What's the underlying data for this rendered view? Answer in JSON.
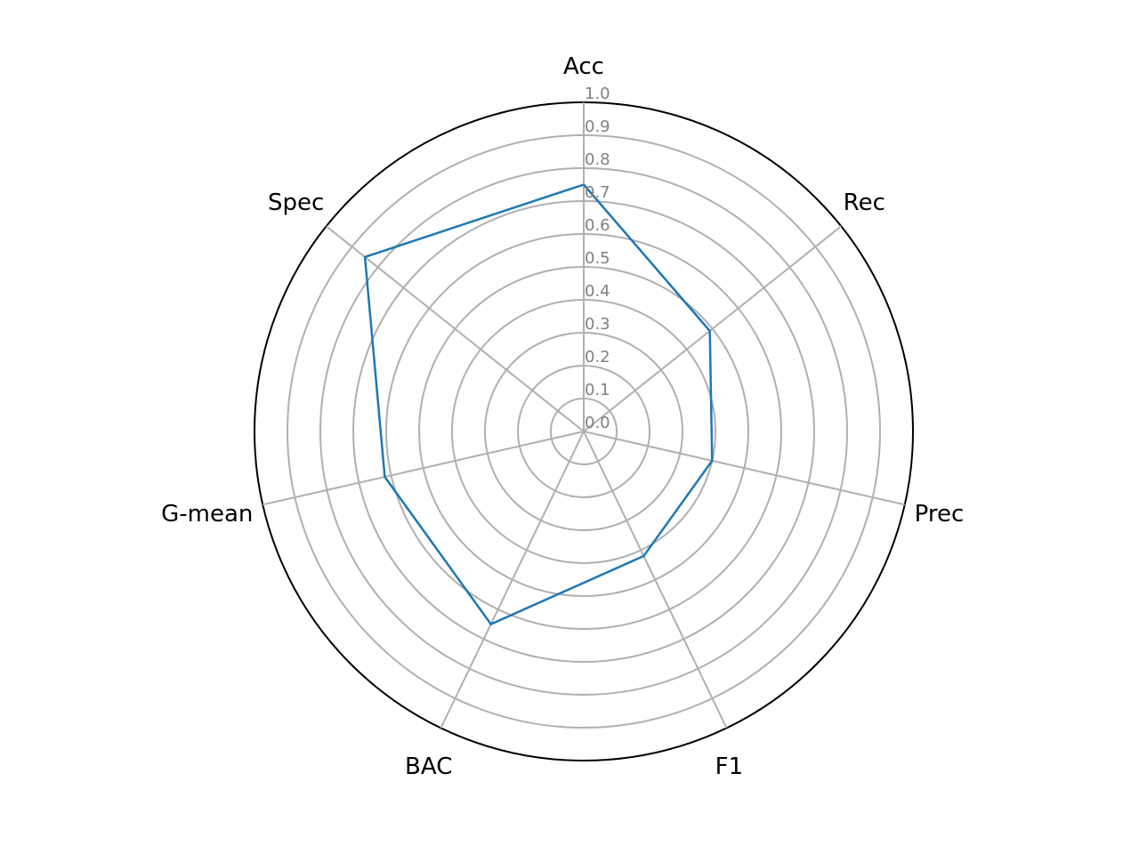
{
  "chart_data": {
    "type": "radar",
    "axes": [
      "Acc",
      "Rec",
      "Prec",
      "F1",
      "BAC",
      "G-mean",
      "Spec"
    ],
    "series": [
      {
        "values": [
          0.75,
          0.49,
          0.4,
          0.42,
          0.65,
          0.62,
          0.85
        ],
        "color": "#1f77b4"
      }
    ],
    "rlim": [
      0,
      1.0
    ],
    "r_ticks": [
      "0.0",
      "0.1",
      "0.2",
      "0.3",
      "0.4",
      "0.5",
      "0.6",
      "0.7",
      "0.8",
      "0.9",
      "1.0"
    ],
    "r_tick_values": [
      0.0,
      0.1,
      0.2,
      0.3,
      0.4,
      0.5,
      0.6,
      0.7,
      0.8,
      0.9,
      1.0
    ],
    "grid": true,
    "title": "",
    "legend": false
  }
}
